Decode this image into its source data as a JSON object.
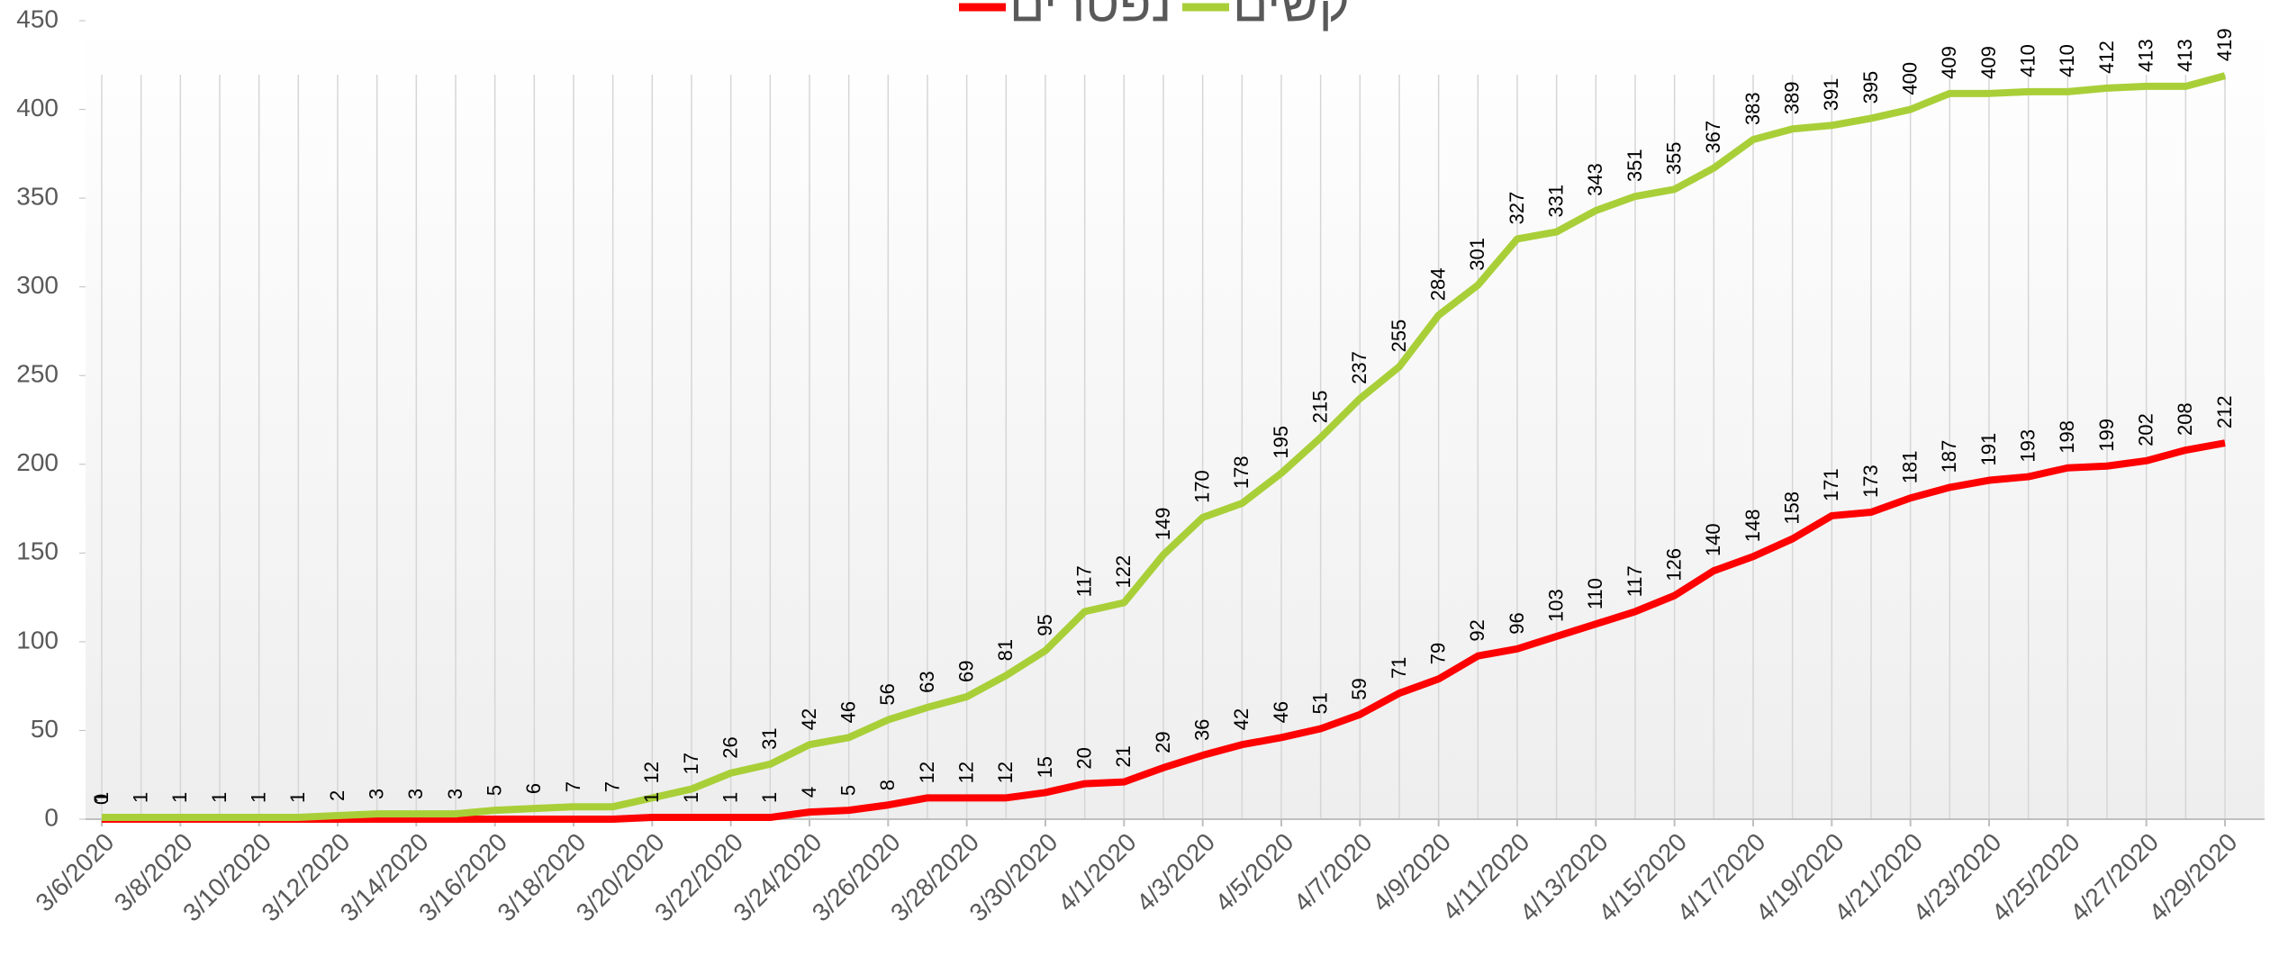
{
  "chart_data": {
    "type": "line",
    "categories": [
      "3/6/2020",
      null,
      "3/8/2020",
      null,
      "3/10/2020",
      null,
      "3/12/2020",
      null,
      "3/14/2020",
      null,
      "3/16/2020",
      null,
      "3/18/2020",
      null,
      "3/20/2020",
      null,
      "3/22/2020",
      null,
      "3/24/2020",
      null,
      "3/26/2020",
      null,
      "3/28/2020",
      null,
      "3/30/2020",
      null,
      "4/1/2020",
      null,
      "4/3/2020",
      null,
      "4/5/2020",
      null,
      "4/7/2020",
      null,
      "4/9/2020",
      null,
      "4/11/2020",
      null,
      "4/13/2020",
      null,
      "4/15/2020",
      null,
      "4/17/2020",
      null,
      "4/19/2020",
      null,
      "4/21/2020",
      null,
      "4/23/2020",
      null,
      "4/25/2020",
      null,
      "4/27/2020",
      null,
      "4/29/2020"
    ],
    "series": [
      {
        "name": "נפטרים",
        "color": "#ff0000",
        "values": [
          0,
          0,
          0,
          0,
          0,
          0,
          0,
          0,
          0,
          0,
          0,
          0,
          0,
          0,
          1,
          1,
          1,
          1,
          4,
          5,
          8,
          12,
          12,
          12,
          15,
          20,
          21,
          29,
          36,
          42,
          46,
          51,
          59,
          71,
          79,
          92,
          96,
          103,
          110,
          117,
          126,
          140,
          148,
          158,
          171,
          173,
          181,
          187,
          191,
          193,
          198,
          199,
          202,
          208,
          212
        ],
        "value_labels": [
          "0",
          null,
          null,
          null,
          null,
          null,
          null,
          null,
          null,
          null,
          null,
          null,
          null,
          null,
          "1",
          "1",
          "1",
          "1",
          "4",
          "5",
          "8",
          "12",
          "12",
          "12",
          "15",
          "20",
          "21",
          "29",
          "36",
          "42",
          "46",
          "51",
          "59",
          "71",
          "79",
          "92",
          "96",
          "103",
          "110",
          "117",
          "126",
          "140",
          "148",
          "158",
          "171",
          "173",
          "181",
          "187",
          "191",
          "193",
          "198",
          "199",
          "202",
          "208",
          "212"
        ]
      },
      {
        "name": "קשים",
        "color": "#a9cf38",
        "values": [
          1,
          1,
          1,
          1,
          1,
          1,
          2,
          3,
          3,
          3,
          5,
          6,
          7,
          7,
          12,
          17,
          26,
          31,
          42,
          46,
          56,
          63,
          69,
          81,
          95,
          117,
          122,
          149,
          170,
          178,
          195,
          215,
          237,
          255,
          284,
          301,
          327,
          331,
          343,
          351,
          355,
          367,
          383,
          389,
          391,
          395,
          400,
          409,
          409,
          410,
          410,
          412,
          413,
          413,
          419
        ]
      }
    ],
    "ylim": [
      0,
      450
    ],
    "yticks": [
      0,
      50,
      100,
      150,
      200,
      250,
      300,
      350,
      400,
      450
    ]
  }
}
